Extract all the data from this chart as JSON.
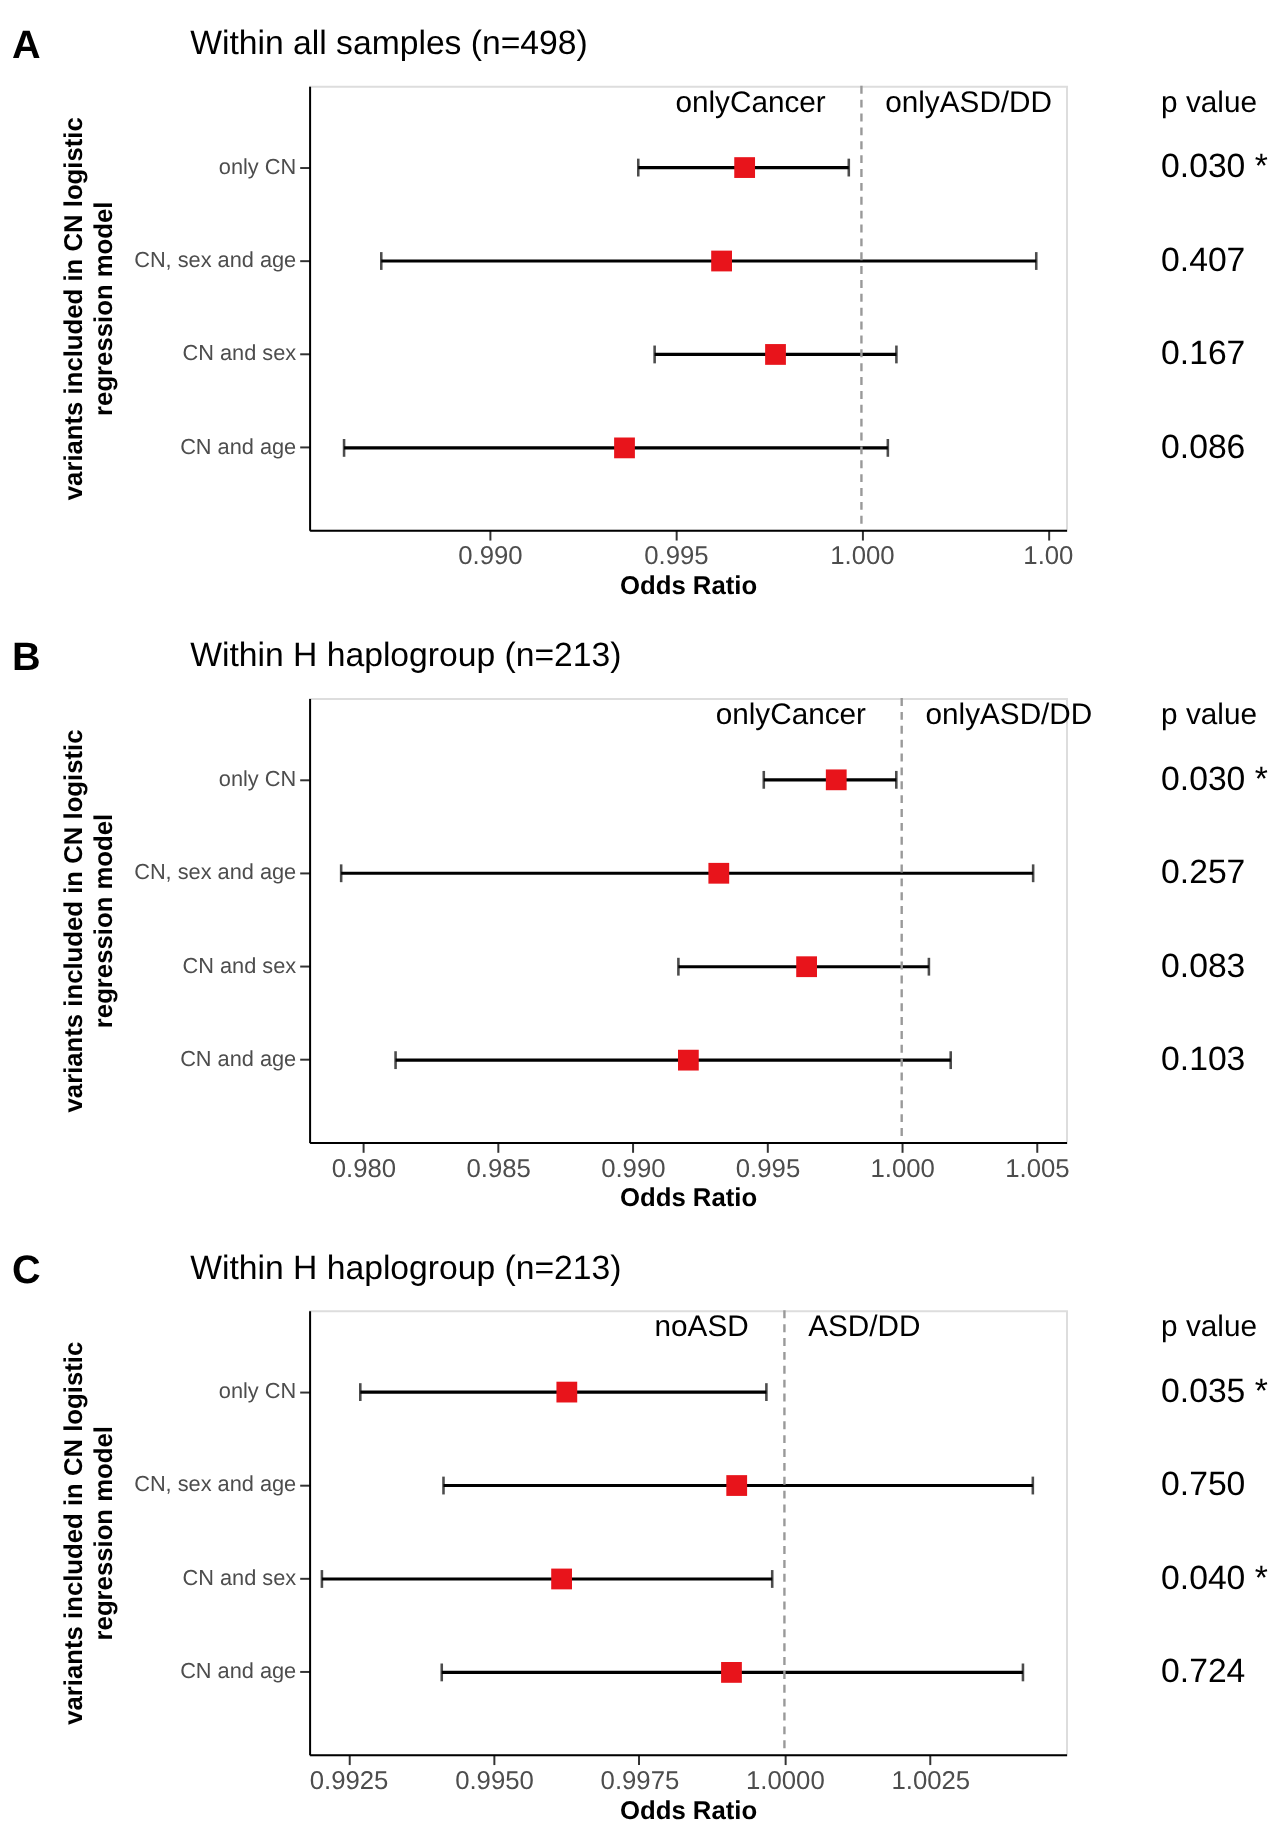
{
  "chart_data": [
    {
      "type": "scatter",
      "orientation": "horizontal",
      "title": "Within all samples (n=498)",
      "xlabel": "Odds Ratio",
      "ylabel": "variants included in CN logistic\nregression model",
      "categories": [
        "only CN",
        "CN, sex and age",
        "CN and sex",
        "CN and age"
      ],
      "series": [
        {
          "color": "#e8141b",
          "values": [
            0.99686,
            0.99624,
            0.99769,
            0.99363
          ],
          "errors": [
            [
              0.994,
              0.99966
            ],
            [
              0.98709,
              1.0047
            ],
            [
              0.99444,
              1.00094
            ],
            [
              0.98609,
              1.00071
            ]
          ]
        }
      ],
      "xlim": [
        0.98515,
        1.0055
      ],
      "xticks": [
        {
          "value": 0.99,
          "label": "0.990"
        },
        0.995,
        {
          "value": 1.0,
          "label": "1.000"
        },
        {
          "value": 1.005,
          "label": "1.00"
        }
      ],
      "ref_lines": [
        {
          "axis": "x",
          "value": 1.0,
          "color": "#999999",
          "line_style": "dashed"
        }
      ],
      "grid": false,
      "marker": "square",
      "annotations": [
        "A",
        "onlyCancer",
        "onlyASD/DD",
        "p value",
        "0.030 *",
        "0.407",
        "0.167",
        "0.086"
      ]
    },
    {
      "type": "scatter",
      "orientation": "horizontal",
      "title": "Within H haplogroup (n=213)",
      "xlabel": "Odds Ratio",
      "ylabel": "variants included in CN logistic\nregression model",
      "categories": [
        "only CN",
        "CN, sex and age",
        "CN and sex",
        "CN and age"
      ],
      "series": [
        {
          "color": "#e8141b",
          "values": [
            0.99757,
            0.99321,
            0.99647,
            0.99208
          ],
          "errors": [
            [
              0.99488,
              0.9998
            ],
            [
              0.97919,
              1.00488
            ],
            [
              0.99171,
              1.00101
            ],
            [
              0.98121,
              1.00182
            ]
          ]
        }
      ],
      "xlim": [
        0.978,
        1.0061
      ],
      "xticks": [
        {
          "value": 0.98,
          "label": "0.980"
        },
        0.985,
        {
          "value": 0.99,
          "label": "0.990"
        },
        0.995,
        {
          "value": 1.0,
          "label": "1.000"
        },
        1.005
      ],
      "ref_lines": [
        {
          "axis": "x",
          "value": 1.0,
          "color": "#999999",
          "line_style": "dashed"
        }
      ],
      "grid": false,
      "marker": "square",
      "annotations": [
        "B",
        "onlyCancer",
        "onlyASD/DD",
        "p value",
        "0.030 *",
        "0.257",
        "0.083",
        "0.103"
      ]
    },
    {
      "type": "scatter",
      "orientation": "horizontal",
      "title": "Within H haplogroup (n=213)",
      "xlabel": "Odds Ratio",
      "ylabel": "variants included in CN  logistic\nregression model",
      "categories": [
        "only CN",
        "CN, sex and age",
        "CN and sex",
        "CN and age"
      ],
      "series": [
        {
          "color": "#e8141b",
          "values": [
            0.99626,
            0.99918,
            0.99617,
            0.99909
          ],
          "errors": [
            [
              0.99271,
              0.99969
            ],
            [
              0.99414,
              1.00427
            ],
            [
              0.99205,
              0.99979
            ],
            [
              0.99411,
              1.0041
            ]
          ]
        }
      ],
      "xlim": [
        0.99183,
        1.00484
      ],
      "xticks": [
        0.9925,
        {
          "value": 0.995,
          "label": "0.9950"
        },
        0.9975,
        {
          "value": 1.0,
          "label": "1.0000"
        },
        1.0025
      ],
      "ref_lines": [
        {
          "axis": "x",
          "value": 1.0,
          "color": "#999999",
          "line_style": "dashed"
        }
      ],
      "grid": false,
      "marker": "square",
      "annotations": [
        "C",
        "noASD",
        "ASD/DD",
        "p value",
        "0.035 *",
        "0.750",
        "0.040 *",
        "0.724"
      ]
    }
  ]
}
